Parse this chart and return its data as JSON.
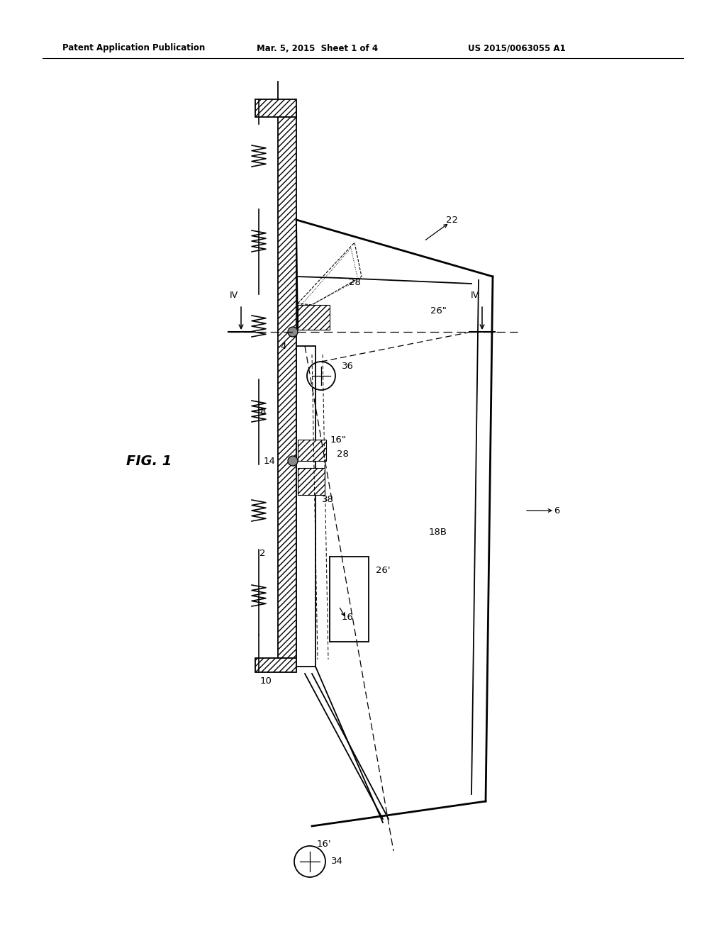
{
  "title_left": "Patent Application Publication",
  "title_mid": "Mar. 5, 2015  Sheet 1 of 4",
  "title_right": "US 2015/0063055 A1",
  "fig_label": "FIG. 1",
  "bg_color": "#ffffff",
  "line_color": "#000000"
}
